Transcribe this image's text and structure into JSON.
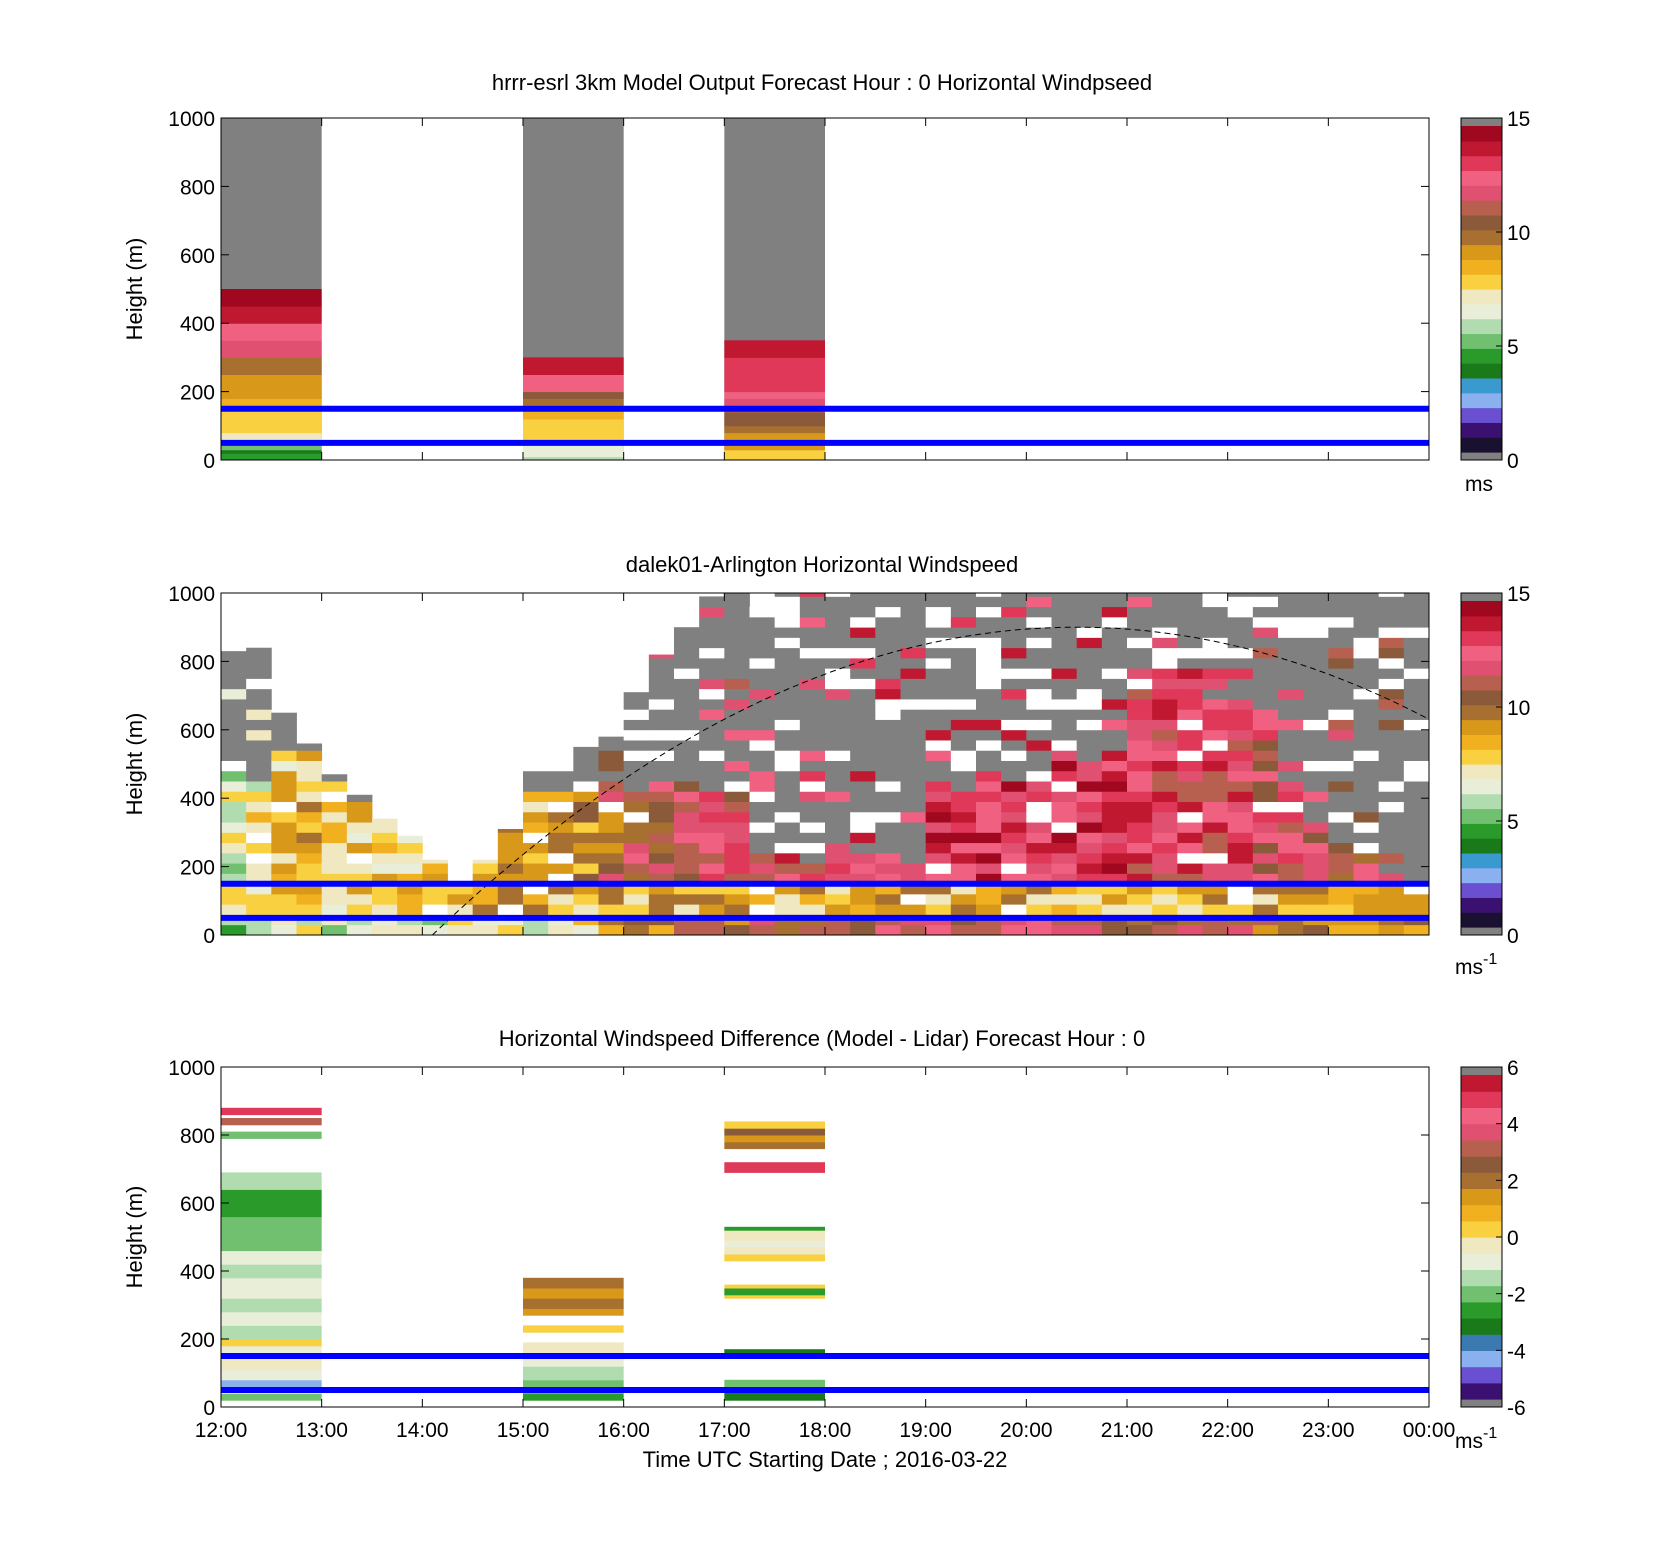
{
  "palettes": {
    "speed": [
      "#1a1030",
      "#3a1070",
      "#6a50d0",
      "#8ab0f0",
      "#3a9ad0",
      "#1a7a1a",
      "#2a9a2a",
      "#70c070",
      "#b0dcb0",
      "#e8eed8",
      "#f0e8c0",
      "#f8d040",
      "#f0b020",
      "#d8981a",
      "#a87030",
      "#8a5a3a",
      "#b86050",
      "#e05070",
      "#f06080",
      "#e03858",
      "#c01830",
      "#a00820"
    ],
    "diff": [
      "#3a1070",
      "#6a50d0",
      "#8ab0f0",
      "#3a7ab0",
      "#1a7a1a",
      "#2a9a2a",
      "#70c070",
      "#b0dcb0",
      "#e8eed8",
      "#f0e8c0",
      "#f8d040",
      "#f0b020",
      "#d8981a",
      "#a87030",
      "#8a5a3a",
      "#b86050",
      "#e05070",
      "#f06080",
      "#e03858",
      "#c01830"
    ],
    "lidar_extra": [
      "#808080",
      "#ffffff",
      "#ffffff",
      "#808080"
    ]
  },
  "colors": {
    "overlay_line": "#0000ff",
    "nodata_top": "#808080"
  },
  "xaxis": {
    "tick_labels": [
      "12:00",
      "13:00",
      "14:00",
      "15:00",
      "16:00",
      "17:00",
      "18:00",
      "19:00",
      "20:00",
      "21:00",
      "22:00",
      "23:00",
      "00:00"
    ],
    "label": "Time UTC  Starting Date ; 2016-03-22"
  },
  "chart_data": [
    {
      "type": "heatmap",
      "title": "hrrr-esrl 3km Model Output   Forecast Hour : 0 Horizontal Windpseed",
      "ylabel": "Height (m)",
      "ylim": [
        0,
        1000
      ],
      "yticks": [
        "0",
        "200",
        "400",
        "600",
        "800",
        "1000"
      ],
      "colorbar": {
        "ticks": [
          "0",
          "5",
          "10",
          "15"
        ],
        "unit": "ms",
        "range": [
          0,
          15
        ]
      },
      "horizontal_lines": [
        50,
        150
      ],
      "columns": [
        {
          "t0": 0,
          "t1": 1,
          "profile": [
            [
              0,
              10,
              6
            ],
            [
              10,
              20,
              6
            ],
            [
              20,
              30,
              5
            ],
            [
              30,
              50,
              7
            ],
            [
              50,
              60,
              9
            ],
            [
              60,
              80,
              10
            ],
            [
              80,
              100,
              11
            ],
            [
              100,
              120,
              11
            ],
            [
              120,
              140,
              11
            ],
            [
              140,
              160,
              11
            ],
            [
              160,
              180,
              12
            ],
            [
              180,
              200,
              13
            ],
            [
              200,
              250,
              13
            ],
            [
              250,
              300,
              14
            ],
            [
              300,
              350,
              17
            ],
            [
              350,
              400,
              18
            ],
            [
              400,
              450,
              20
            ],
            [
              450,
              500,
              21
            ]
          ]
        },
        {
          "t0": 3,
          "t1": 4,
          "profile": [
            [
              0,
              10,
              8
            ],
            [
              10,
              20,
              9
            ],
            [
              20,
              30,
              9
            ],
            [
              30,
              50,
              9
            ],
            [
              50,
              60,
              12
            ],
            [
              60,
              80,
              11
            ],
            [
              80,
              100,
              11
            ],
            [
              100,
              120,
              11
            ],
            [
              120,
              140,
              12
            ],
            [
              140,
              160,
              12
            ],
            [
              160,
              180,
              14
            ],
            [
              180,
              200,
              15
            ],
            [
              200,
              250,
              18
            ],
            [
              250,
              300,
              20
            ]
          ]
        },
        {
          "t0": 5,
          "t1": 6,
          "profile": [
            [
              0,
              10,
              11
            ],
            [
              10,
              20,
              11
            ],
            [
              20,
              30,
              11
            ],
            [
              30,
              50,
              13
            ],
            [
              50,
              60,
              13
            ],
            [
              60,
              80,
              13
            ],
            [
              80,
              100,
              14
            ],
            [
              100,
              120,
              15
            ],
            [
              120,
              140,
              15
            ],
            [
              140,
              160,
              16
            ],
            [
              160,
              180,
              17
            ],
            [
              180,
              200,
              18
            ],
            [
              200,
              250,
              19
            ],
            [
              250,
              300,
              19
            ],
            [
              300,
              350,
              20
            ]
          ]
        }
      ]
    },
    {
      "type": "heatmap",
      "title": "dalek01-Arlington  Horizontal Windspeed",
      "ylabel": "Height (m)",
      "ylim": [
        0,
        1000
      ],
      "yticks": [
        "0",
        "200",
        "400",
        "600",
        "800",
        "1000"
      ],
      "colorbar": {
        "ticks": [
          "0",
          "5",
          "10",
          "15"
        ],
        "unit": "ms",
        "unit_sup": "-1",
        "range": [
          0,
          15
        ]
      },
      "horizontal_lines": [
        50,
        150
      ],
      "bins": {
        "time_step_h": 0.25,
        "height_step_m": 30
      },
      "columns_top": [
        830,
        840,
        650,
        560,
        470,
        410,
        340,
        290,
        220,
        150,
        220,
        310,
        510,
        540,
        550,
        580,
        710,
        820,
        900,
        990,
        1000,
        960,
        1000,
        1000,
        1000,
        1000,
        1000,
        1000,
        1000,
        1000,
        1000,
        1000,
        1000,
        1000,
        1000,
        1000,
        1000,
        1000,
        1000,
        1000,
        1000,
        1000,
        1000,
        1000,
        1000,
        1000,
        1000,
        1000
      ],
      "columns_lowtop": [
        460,
        440,
        520,
        520,
        440,
        380,
        340,
        300,
        300,
        240,
        260,
        380,
        420,
        400,
        400,
        400,
        410,
        440,
        430,
        420,
        420,
        240,
        230,
        200,
        240,
        240,
        240,
        210,
        450,
        420,
        460,
        430,
        450,
        530,
        490,
        540,
        770,
        770,
        770,
        690,
        680,
        620,
        440,
        330,
        270,
        220,
        150,
        130
      ],
      "columns_mean": [
        9,
        10,
        11,
        12,
        11,
        11,
        11,
        11,
        11,
        12,
        12,
        12,
        12,
        13,
        13,
        15,
        16,
        16,
        17,
        17,
        17,
        18,
        18,
        18,
        18,
        19,
        19,
        19,
        19,
        19,
        19,
        19,
        19,
        19,
        19,
        19,
        18,
        18,
        18,
        18,
        18,
        17,
        17,
        17,
        16,
        16,
        16,
        16
      ],
      "dashed_curve": {
        "t0": 2.1,
        "peak_t": 8.5,
        "peak_height": 900,
        "t1": 12
      }
    },
    {
      "type": "heatmap",
      "title": "Horizontal Windspeed Difference (Model - Lidar) Forecast Hour : 0",
      "ylabel": "Height (m)",
      "ylim": [
        0,
        1000
      ],
      "yticks": [
        "0",
        "200",
        "400",
        "600",
        "800",
        "1000"
      ],
      "colorbar": {
        "ticks": [
          "-6",
          "-4",
          "-2",
          "0",
          "2",
          "4",
          "6"
        ],
        "unit": "ms",
        "unit_sup": "-1",
        "range": [
          -6,
          6
        ]
      },
      "horizontal_lines": [
        50,
        150
      ],
      "columns": [
        {
          "t0": 0,
          "t1": 1,
          "profile": [
            [
              20,
              40,
              6
            ],
            [
              40,
              60,
              8
            ],
            [
              60,
              80,
              2
            ],
            [
              80,
              110,
              8
            ],
            [
              110,
              150,
              9
            ],
            [
              150,
              180,
              8
            ],
            [
              180,
              200,
              10
            ],
            [
              200,
              240,
              7
            ],
            [
              240,
              280,
              8
            ],
            [
              280,
              320,
              7
            ],
            [
              320,
              380,
              8
            ],
            [
              380,
              420,
              7
            ],
            [
              420,
              460,
              8
            ],
            [
              460,
              560,
              6
            ],
            [
              560,
              640,
              5
            ],
            [
              640,
              690,
              7
            ],
            [
              790,
              810,
              6
            ],
            [
              830,
              850,
              15
            ],
            [
              860,
              880,
              18
            ]
          ]
        },
        {
          "t0": 3,
          "t1": 4,
          "profile": [
            [
              20,
              40,
              5
            ],
            [
              40,
              80,
              6
            ],
            [
              80,
              120,
              7
            ],
            [
              120,
              160,
              8
            ],
            [
              160,
              190,
              9
            ],
            [
              220,
              240,
              10
            ],
            [
              270,
              290,
              12
            ],
            [
              290,
              320,
              13
            ],
            [
              320,
              350,
              12
            ],
            [
              350,
              380,
              13
            ]
          ]
        },
        {
          "t0": 5,
          "t1": 6,
          "profile": [
            [
              20,
              50,
              4
            ],
            [
              50,
              80,
              6
            ],
            [
              160,
              170,
              4
            ],
            [
              320,
              330,
              10
            ],
            [
              330,
              350,
              5
            ],
            [
              350,
              360,
              10
            ],
            [
              430,
              450,
              10
            ],
            [
              450,
              470,
              9
            ],
            [
              470,
              490,
              8
            ],
            [
              490,
              520,
              9
            ],
            [
              520,
              530,
              5
            ],
            [
              690,
              720,
              18
            ],
            [
              760,
              780,
              13
            ],
            [
              780,
              800,
              12
            ],
            [
              800,
              820,
              14
            ],
            [
              820,
              840,
              10
            ]
          ]
        }
      ]
    }
  ]
}
